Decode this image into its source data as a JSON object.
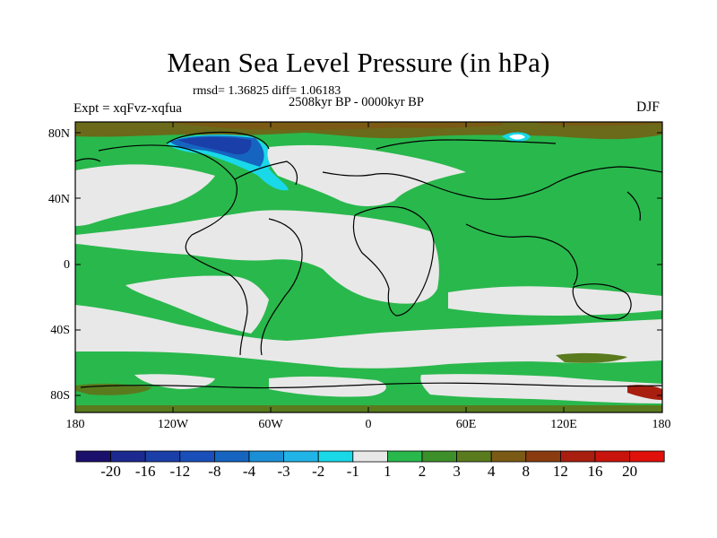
{
  "title": "Mean Sea Level Pressure (in hPa)",
  "stats_text": "rmsd= 1.36825 diff= 1.06183",
  "period_text": "2508kyr BP - 0000kyr BP",
  "experiment_text": "Expt = xqFvz-xqfua",
  "season": "DJF",
  "lat_labels": [
    "80N",
    "40N",
    "0",
    "40S",
    "80S"
  ],
  "lon_labels": [
    "180",
    "120W",
    "60W",
    "0",
    "60E",
    "120E",
    "180"
  ],
  "colorbar": {
    "labels": [
      "-20",
      "-16",
      "-12",
      "-8",
      "-4",
      "-3",
      "-2",
      "-1",
      "1",
      "2",
      "3",
      "4",
      "8",
      "12",
      "16",
      "20"
    ],
    "colors": [
      "#1a0f6b",
      "#1c2a8f",
      "#1a3fa8",
      "#1a4fb9",
      "#1565c0",
      "#1b8fd6",
      "#21b4e6",
      "#19d8e8",
      "#e8e8e8",
      "#29b84c",
      "#3d8f2a",
      "#5a7a1e",
      "#7a5a14",
      "#8a3c10",
      "#a81f0f",
      "#c8140c",
      "#e0100a"
    ]
  }
}
